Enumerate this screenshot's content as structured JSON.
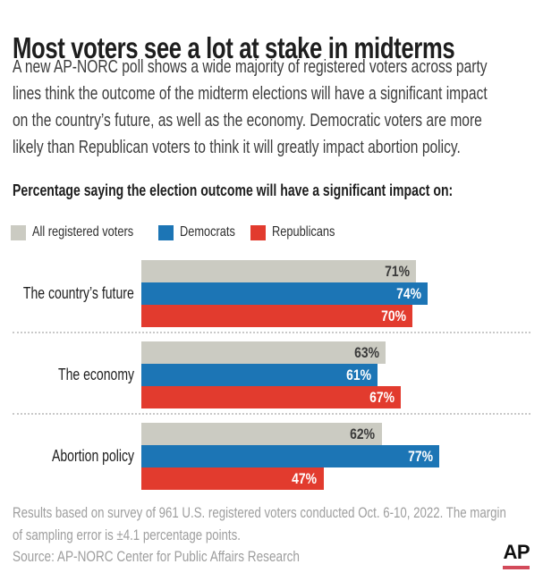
{
  "header": {
    "title": "Most voters see a lot at stake in midterms",
    "intro_lines": [
      "A new AP-NORC poll shows a wide majority of registered voters across party",
      "lines think the outcome of the midterm elections will have a significant impact",
      "on the country’s future, as well as the economy. Democratic voters are more",
      "likely than Republican voters to think it will greatly impact abortion policy."
    ],
    "kicker": "Percentage saying the election outcome will have a significant impact on:"
  },
  "chart_data": {
    "type": "bar",
    "orientation": "horizontal",
    "title": "Percentage saying the election outcome will have a significant impact on:",
    "categories": [
      "The country’s future",
      "The economy",
      "Abortion policy"
    ],
    "series": [
      {
        "name": "All registered voters",
        "color": "#cbcbc2",
        "value_label_color": "#3a3a3a",
        "values": [
          71,
          63,
          62
        ]
      },
      {
        "name": "Democrats",
        "color": "#1c75b5",
        "value_label_color": "#ffffff",
        "values": [
          74,
          61,
          77
        ]
      },
      {
        "name": "Republicans",
        "color": "#e23b2e",
        "value_label_color": "#ffffff",
        "values": [
          70,
          67,
          47
        ]
      }
    ],
    "value_suffix": "%",
    "xlim": [
      0,
      100
    ],
    "grid": false,
    "legend_position": "top"
  },
  "footer": {
    "note_lines": [
      "Results based on survey of 961 U.S. registered voters conducted Oct. 6-10, 2022. The margin",
      "of sampling error is ±4.1 percentage points."
    ],
    "source": "Source: AP-NORC Center for Public Affairs Research",
    "logo_text": "AP",
    "logo_underline_color": "#d34a5a"
  }
}
